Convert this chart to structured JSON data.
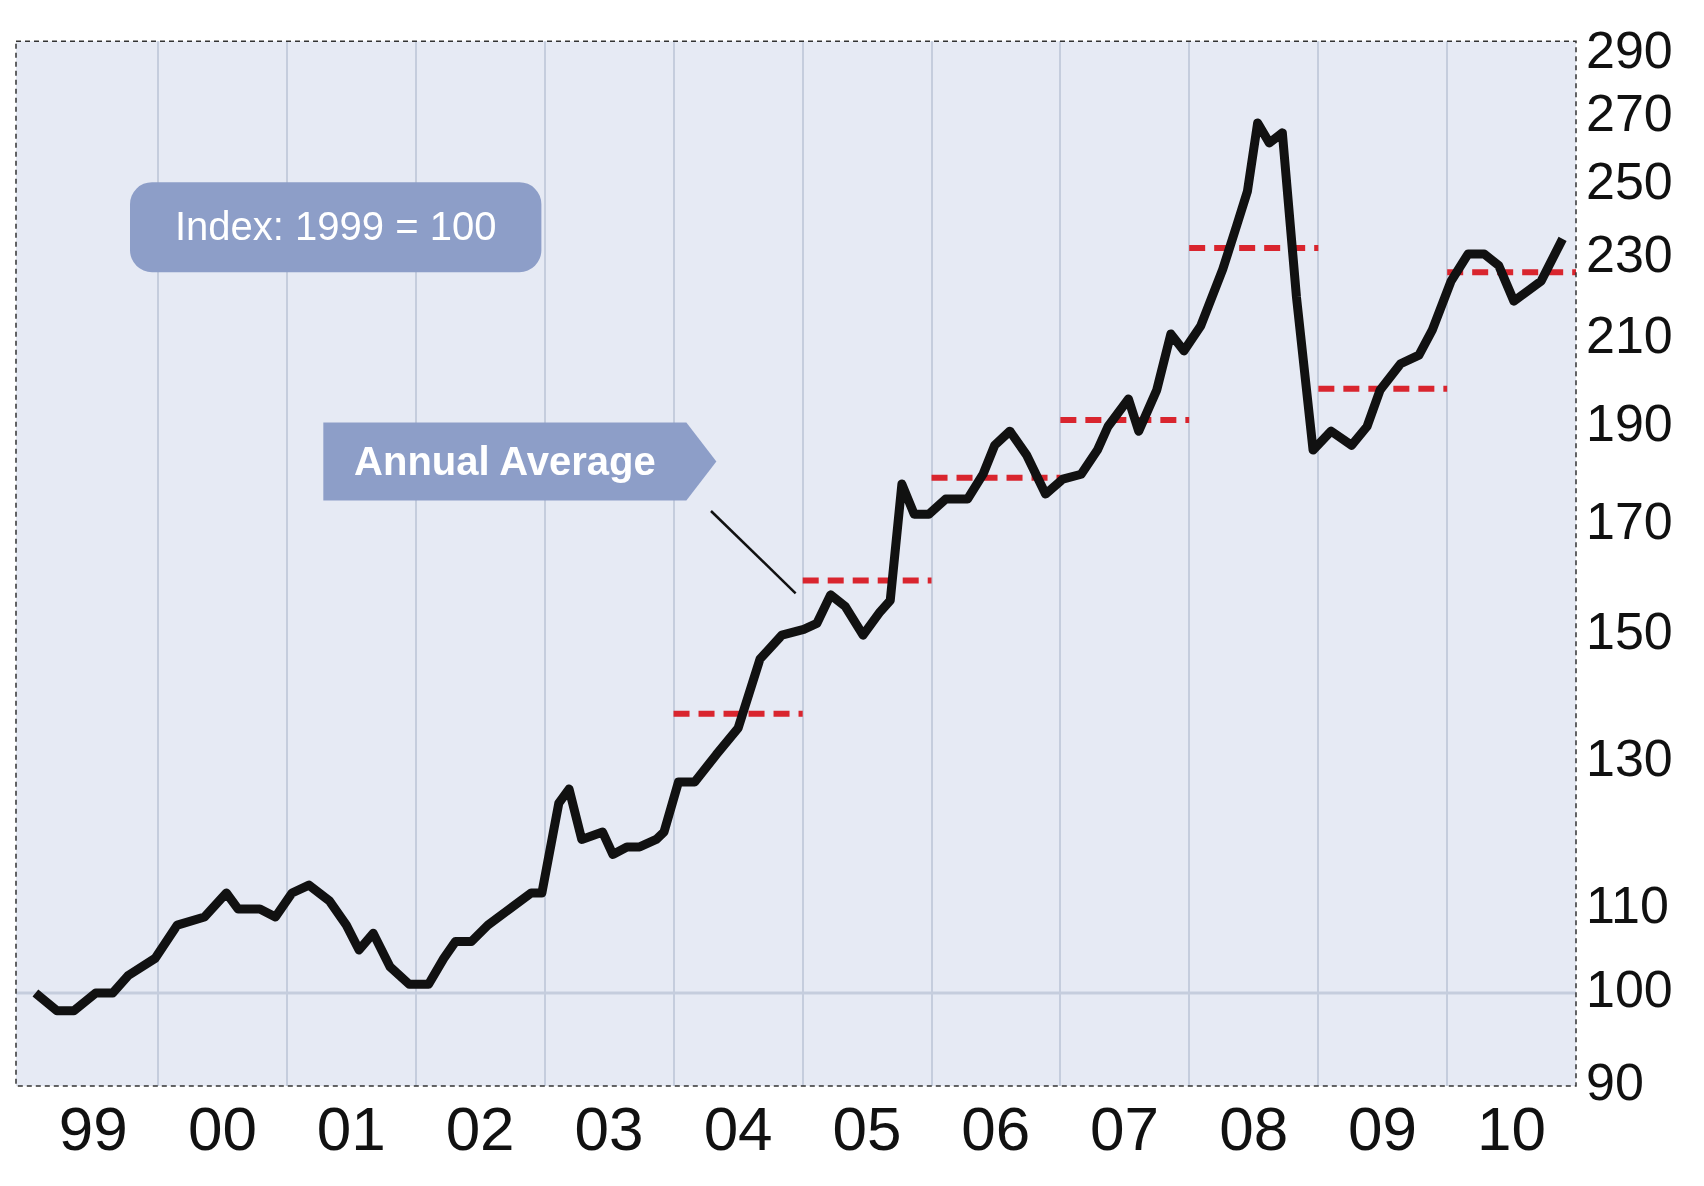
{
  "chart_data": {
    "type": "line",
    "log": "y",
    "grid": "x",
    "marker": "none",
    "annotations": [
      "Index: 1999 = 100",
      "Annual Average"
    ],
    "xlim": [
      "1998-11-25",
      "2011-01-01"
    ],
    "xticks": [
      {
        "value": "1999-07-02",
        "label": "99"
      },
      {
        "value": "2000-07-02",
        "label": "00"
      },
      {
        "value": "2001-07-02",
        "label": "01"
      },
      {
        "value": "2002-07-02",
        "label": "02"
      },
      {
        "value": "2003-07-02",
        "label": "03"
      },
      {
        "value": "2004-07-02",
        "label": "04"
      },
      {
        "value": "2005-07-02",
        "label": "05"
      },
      {
        "value": "2006-07-02",
        "label": "06"
      },
      {
        "value": "2007-07-02",
        "label": "07"
      },
      {
        "value": "2008-07-02",
        "label": "08"
      },
      {
        "value": "2009-07-02",
        "label": "09"
      },
      {
        "value": "2010-07-02",
        "label": "10"
      },
      {
        "value": "2000-01-01",
        "label": null
      },
      {
        "value": "2001-01-01",
        "label": null
      },
      {
        "value": "2002-01-01",
        "label": null
      },
      {
        "value": "2003-01-01",
        "label": null
      },
      {
        "value": "2004-01-01",
        "label": null
      },
      {
        "value": "2005-01-01",
        "label": null
      },
      {
        "value": "2006-01-01",
        "label": null
      },
      {
        "value": "2007-01-01",
        "label": null
      },
      {
        "value": "2008-01-01",
        "label": null
      },
      {
        "value": "2009-01-01",
        "label": null
      },
      {
        "value": "2010-01-01",
        "label": null
      }
    ],
    "ylim": [
      90,
      294
    ],
    "yticks": [
      90,
      100,
      110,
      130,
      150,
      170,
      190,
      210,
      230,
      250,
      270,
      290
    ],
    "ref_lines": [
      {
        "axis": "y",
        "value": 100,
        "color": "#c5cddd"
      }
    ],
    "x": [
      "1999-01-19",
      "1999-03-21",
      "1999-05-08",
      "1999-07-09",
      "1999-08-26",
      "1999-10-09",
      "1999-12-24",
      "2000-02-25",
      "2000-05-12",
      "2000-07-13",
      "2000-08-15",
      "2000-10-16",
      "2000-11-29",
      "2001-01-15",
      "2001-03-04",
      "2001-05-01",
      "2001-06-18",
      "2001-07-24",
      "2001-09-02",
      "2001-10-20",
      "2001-12-13",
      "2002-02-06",
      "2002-03-21",
      "2002-04-23",
      "2002-06-07",
      "2002-07-24",
      "2002-09-24",
      "2002-11-24",
      "2002-12-24",
      "2003-02-10",
      "2003-03-11",
      "2003-04-16",
      "2003-06-14",
      "2003-07-13",
      "2003-08-22",
      "2003-09-27",
      "2003-11-13",
      "2003-12-05",
      "2004-01-15",
      "2004-03-01",
      "2004-05-01",
      "2004-07-02",
      "2004-09-02",
      "2004-11-03",
      "2005-01-04",
      "2005-02-10",
      "2005-03-21",
      "2005-05-01",
      "2005-06-21",
      "2005-08-08",
      "2005-09-06",
      "2005-10-09",
      "2005-11-13",
      "2005-12-24",
      "2006-02-10",
      "2006-04-13",
      "2006-05-27",
      "2006-06-29",
      "2006-08-11",
      "2006-09-27",
      "2006-11-20",
      "2007-01-08",
      "2007-03-01",
      "2007-04-16",
      "2007-05-16",
      "2007-07-13",
      "2007-08-11",
      "2007-10-01",
      "2007-11-10",
      "2007-12-17",
      "2008-02-03",
      "2008-04-05",
      "2008-05-16",
      "2008-06-14",
      "2008-07-13",
      "2008-08-15",
      "2008-09-21",
      "2008-10-31",
      "2008-12-17",
      "2009-02-06",
      "2009-04-05",
      "2009-05-19",
      "2009-06-25",
      "2009-08-22",
      "2009-10-13",
      "2009-11-20",
      "2010-01-12",
      "2010-03-01",
      "2010-04-16",
      "2010-05-27",
      "2010-07-09",
      "2010-09-24",
      "2010-11-24"
    ],
    "series": [
      {
        "color": "#111111",
        "values": [
          100,
          98,
          98,
          100,
          100,
          102,
          104,
          108,
          109,
          112,
          110,
          110,
          109,
          112,
          113,
          111,
          108,
          105,
          107,
          103,
          101,
          101,
          104,
          106,
          106,
          108,
          110,
          112,
          112,
          124,
          126,
          119,
          120,
          117,
          118,
          118,
          119,
          120,
          127,
          127,
          131,
          135,
          146,
          150,
          151,
          152,
          157,
          155,
          150,
          154,
          156,
          178,
          172,
          172,
          175,
          175,
          180,
          186,
          189,
          184,
          176,
          179,
          180,
          185,
          190,
          196,
          189,
          198,
          211,
          207,
          213,
          227,
          239,
          248,
          268,
          262,
          265,
          220,
          185,
          189,
          186,
          190,
          198,
          204,
          206,
          212,
          224,
          231,
          231,
          228,
          219,
          224,
          235
        ]
      },
      {
        "line_style": "dashed",
        "color": "#d9252e",
        "x": [
          "2004-01-01",
          "2005-01-01"
        ],
        "values": [
          137.2,
          137.2
        ]
      },
      {
        "line_style": "dashed",
        "color": "#d9252e",
        "x": [
          "2005-01-01",
          "2006-01-01"
        ],
        "values": [
          159.6,
          159.6
        ]
      },
      {
        "line_style": "dashed",
        "color": "#d9252e",
        "x": [
          "2006-01-01",
          "2007-01-01"
        ],
        "values": [
          179.3,
          179.3
        ]
      },
      {
        "line_style": "dashed",
        "color": "#d9252e",
        "x": [
          "2007-01-01",
          "2008-01-01"
        ],
        "values": [
          191.4,
          191.4
        ]
      },
      {
        "line_style": "dashed",
        "color": "#d9252e",
        "x": [
          "2008-01-01",
          "2009-01-01"
        ],
        "values": [
          232.6,
          232.6
        ]
      },
      {
        "line_style": "dashed",
        "color": "#d9252e",
        "x": [
          "2009-01-01",
          "2010-01-01"
        ],
        "values": [
          198.3,
          198.3
        ]
      },
      {
        "line_style": "dashed",
        "color": "#d9252e",
        "x": [
          "2010-01-01",
          "2011-01-01"
        ],
        "values": [
          226.3,
          226.3
        ]
      }
    ]
  }
}
